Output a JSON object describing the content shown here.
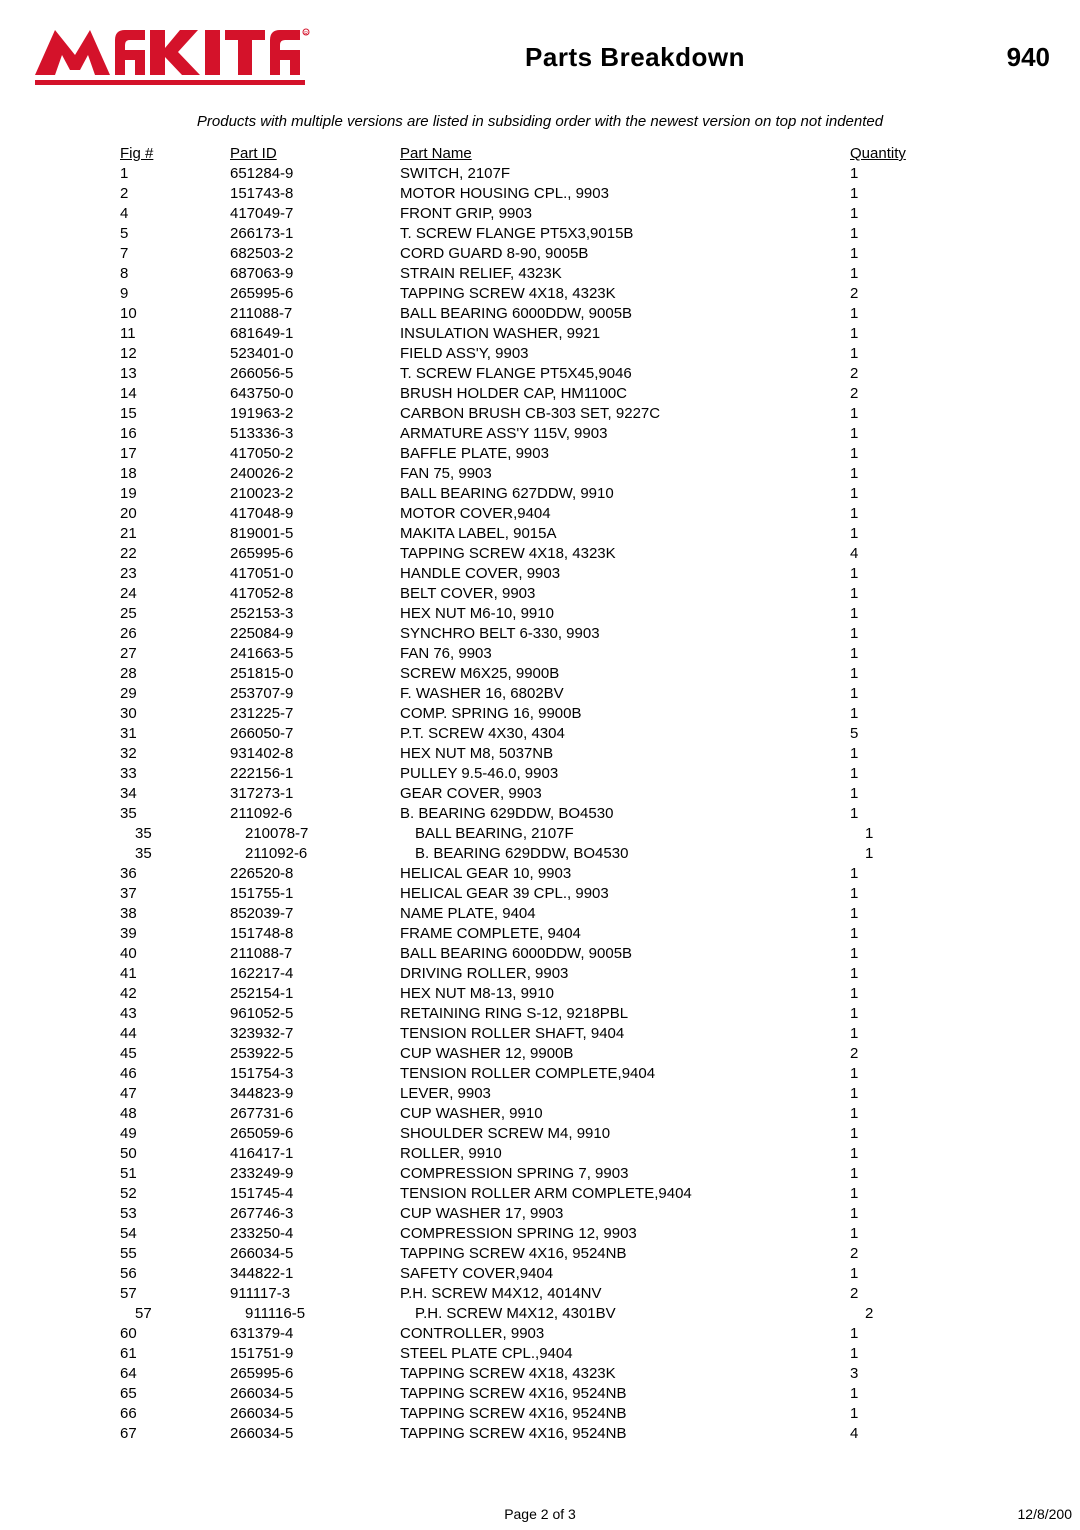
{
  "header": {
    "brand": "makita",
    "title": "Parts Breakdown",
    "model": "940"
  },
  "subtitle": "Products with multiple versions are listed in subsiding order with the newest version on top not indented",
  "columns": {
    "fig": "Fig #",
    "partId": "Part ID",
    "partName": "Part Name",
    "quantity": "Quantity"
  },
  "rows": [
    {
      "fig": "1",
      "id": "651284-9",
      "name": "SWITCH, 2107F",
      "qty": "1",
      "indent": false
    },
    {
      "fig": "2",
      "id": "151743-8",
      "name": "MOTOR HOUSING CPL., 9903",
      "qty": "1",
      "indent": false
    },
    {
      "fig": "4",
      "id": "417049-7",
      "name": "FRONT GRIP, 9903",
      "qty": "1",
      "indent": false
    },
    {
      "fig": "5",
      "id": "266173-1",
      "name": "T. SCREW FLANGE PT5X3,9015B",
      "qty": "1",
      "indent": false
    },
    {
      "fig": "7",
      "id": "682503-2",
      "name": "CORD GUARD 8-90, 9005B",
      "qty": "1",
      "indent": false
    },
    {
      "fig": "8",
      "id": "687063-9",
      "name": "STRAIN RELIEF, 4323K",
      "qty": "1",
      "indent": false
    },
    {
      "fig": "9",
      "id": "265995-6",
      "name": "TAPPING SCREW 4X18, 4323K",
      "qty": "2",
      "indent": false
    },
    {
      "fig": "10",
      "id": "211088-7",
      "name": "BALL BEARING 6000DDW, 9005B",
      "qty": "1",
      "indent": false
    },
    {
      "fig": "11",
      "id": "681649-1",
      "name": "INSULATION WASHER, 9921",
      "qty": "1",
      "indent": false
    },
    {
      "fig": "12",
      "id": "523401-0",
      "name": "FIELD ASS'Y, 9903",
      "qty": "1",
      "indent": false
    },
    {
      "fig": "13",
      "id": "266056-5",
      "name": "T. SCREW FLANGE PT5X45,9046",
      "qty": "2",
      "indent": false
    },
    {
      "fig": "14",
      "id": "643750-0",
      "name": "BRUSH HOLDER CAP, HM1100C",
      "qty": "2",
      "indent": false
    },
    {
      "fig": "15",
      "id": "191963-2",
      "name": "CARBON BRUSH CB-303 SET, 9227C",
      "qty": "1",
      "indent": false
    },
    {
      "fig": "16",
      "id": "513336-3",
      "name": "ARMATURE ASS'Y 115V, 9903",
      "qty": "1",
      "indent": false
    },
    {
      "fig": "17",
      "id": "417050-2",
      "name": "BAFFLE PLATE, 9903",
      "qty": "1",
      "indent": false
    },
    {
      "fig": "18",
      "id": "240026-2",
      "name": "FAN 75, 9903",
      "qty": "1",
      "indent": false
    },
    {
      "fig": "19",
      "id": "210023-2",
      "name": "BALL BEARING 627DDW, 9910",
      "qty": "1",
      "indent": false
    },
    {
      "fig": "20",
      "id": "417048-9",
      "name": "MOTOR COVER,9404",
      "qty": "1",
      "indent": false
    },
    {
      "fig": "21",
      "id": "819001-5",
      "name": "MAKITA LABEL, 9015A",
      "qty": "1",
      "indent": false
    },
    {
      "fig": "22",
      "id": "265995-6",
      "name": "TAPPING SCREW 4X18, 4323K",
      "qty": "4",
      "indent": false
    },
    {
      "fig": "23",
      "id": "417051-0",
      "name": "HANDLE COVER, 9903",
      "qty": "1",
      "indent": false
    },
    {
      "fig": "24",
      "id": "417052-8",
      "name": "BELT COVER, 9903",
      "qty": "1",
      "indent": false
    },
    {
      "fig": "25",
      "id": "252153-3",
      "name": "HEX NUT M6-10, 9910",
      "qty": "1",
      "indent": false
    },
    {
      "fig": "26",
      "id": "225084-9",
      "name": "SYNCHRO BELT 6-330, 9903",
      "qty": "1",
      "indent": false
    },
    {
      "fig": "27",
      "id": "241663-5",
      "name": "FAN 76, 9903",
      "qty": "1",
      "indent": false
    },
    {
      "fig": "28",
      "id": "251815-0",
      "name": "SCREW M6X25, 9900B",
      "qty": "1",
      "indent": false
    },
    {
      "fig": "29",
      "id": "253707-9",
      "name": "F. WASHER 16, 6802BV",
      "qty": "1",
      "indent": false
    },
    {
      "fig": "30",
      "id": "231225-7",
      "name": "COMP. SPRING 16, 9900B",
      "qty": "1",
      "indent": false
    },
    {
      "fig": "31",
      "id": "266050-7",
      "name": "P.T. SCREW 4X30, 4304",
      "qty": "5",
      "indent": false
    },
    {
      "fig": "32",
      "id": "931402-8",
      "name": "HEX NUT M8, 5037NB",
      "qty": "1",
      "indent": false
    },
    {
      "fig": "33",
      "id": "222156-1",
      "name": "PULLEY 9.5-46.0, 9903",
      "qty": "1",
      "indent": false
    },
    {
      "fig": "34",
      "id": "317273-1",
      "name": "GEAR COVER, 9903",
      "qty": "1",
      "indent": false
    },
    {
      "fig": "35",
      "id": "211092-6",
      "name": "B. BEARING 629DDW, BO4530",
      "qty": "1",
      "indent": false
    },
    {
      "fig": "35",
      "id": "210078-7",
      "name": "BALL BEARING, 2107F",
      "qty": "1",
      "indent": true
    },
    {
      "fig": "35",
      "id": "211092-6",
      "name": "B. BEARING 629DDW, BO4530",
      "qty": "1",
      "indent": true
    },
    {
      "fig": "36",
      "id": "226520-8",
      "name": "HELICAL GEAR 10, 9903",
      "qty": "1",
      "indent": false
    },
    {
      "fig": "37",
      "id": "151755-1",
      "name": "HELICAL GEAR 39 CPL., 9903",
      "qty": "1",
      "indent": false
    },
    {
      "fig": "38",
      "id": "852039-7",
      "name": "NAME PLATE, 9404",
      "qty": "1",
      "indent": false
    },
    {
      "fig": "39",
      "id": "151748-8",
      "name": "FRAME COMPLETE, 9404",
      "qty": "1",
      "indent": false
    },
    {
      "fig": "40",
      "id": "211088-7",
      "name": "BALL BEARING 6000DDW, 9005B",
      "qty": "1",
      "indent": false
    },
    {
      "fig": "41",
      "id": "162217-4",
      "name": "DRIVING ROLLER, 9903",
      "qty": "1",
      "indent": false
    },
    {
      "fig": "42",
      "id": "252154-1",
      "name": "HEX NUT M8-13, 9910",
      "qty": "1",
      "indent": false
    },
    {
      "fig": "43",
      "id": "961052-5",
      "name": "RETAINING RING S-12, 9218PBL",
      "qty": "1",
      "indent": false
    },
    {
      "fig": "44",
      "id": "323932-7",
      "name": "TENSION ROLLER SHAFT, 9404",
      "qty": "1",
      "indent": false
    },
    {
      "fig": "45",
      "id": "253922-5",
      "name": "CUP WASHER 12, 9900B",
      "qty": "2",
      "indent": false
    },
    {
      "fig": "46",
      "id": "151754-3",
      "name": "TENSION ROLLER COMPLETE,9404",
      "qty": "1",
      "indent": false
    },
    {
      "fig": "47",
      "id": "344823-9",
      "name": "LEVER, 9903",
      "qty": "1",
      "indent": false
    },
    {
      "fig": "48",
      "id": "267731-6",
      "name": "CUP WASHER, 9910",
      "qty": "1",
      "indent": false
    },
    {
      "fig": "49",
      "id": "265059-6",
      "name": "SHOULDER SCREW M4, 9910",
      "qty": "1",
      "indent": false
    },
    {
      "fig": "50",
      "id": "416417-1",
      "name": "ROLLER, 9910",
      "qty": "1",
      "indent": false
    },
    {
      "fig": "51",
      "id": "233249-9",
      "name": "COMPRESSION SPRING 7, 9903",
      "qty": "1",
      "indent": false
    },
    {
      "fig": "52",
      "id": "151745-4",
      "name": "TENSION ROLLER ARM COMPLETE,9404",
      "qty": "1",
      "indent": false
    },
    {
      "fig": "53",
      "id": "267746-3",
      "name": "CUP WASHER 17, 9903",
      "qty": "1",
      "indent": false
    },
    {
      "fig": "54",
      "id": "233250-4",
      "name": "COMPRESSION SPRING 12, 9903",
      "qty": "1",
      "indent": false
    },
    {
      "fig": "55",
      "id": "266034-5",
      "name": "TAPPING SCREW 4X16, 9524NB",
      "qty": "2",
      "indent": false
    },
    {
      "fig": "56",
      "id": "344822-1",
      "name": "SAFETY COVER,9404",
      "qty": "1",
      "indent": false
    },
    {
      "fig": "57",
      "id": "911117-3",
      "name": "P.H. SCREW M4X12, 4014NV",
      "qty": "2",
      "indent": false
    },
    {
      "fig": "57",
      "id": "911116-5",
      "name": "P.H. SCREW M4X12, 4301BV",
      "qty": "2",
      "indent": true
    },
    {
      "fig": "60",
      "id": "631379-4",
      "name": "CONTROLLER, 9903",
      "qty": "1",
      "indent": false
    },
    {
      "fig": "61",
      "id": "151751-9",
      "name": "STEEL PLATE CPL.,9404",
      "qty": "1",
      "indent": false
    },
    {
      "fig": "64",
      "id": "265995-6",
      "name": "TAPPING SCREW 4X18, 4323K",
      "qty": "3",
      "indent": false
    },
    {
      "fig": "65",
      "id": "266034-5",
      "name": "TAPPING SCREW 4X16, 9524NB",
      "qty": "1",
      "indent": false
    },
    {
      "fig": "66",
      "id": "266034-5",
      "name": "TAPPING SCREW 4X16, 9524NB",
      "qty": "1",
      "indent": false
    },
    {
      "fig": "67",
      "id": "266034-5",
      "name": "TAPPING SCREW 4X16, 9524NB",
      "qty": "4",
      "indent": false
    }
  ],
  "footer": {
    "page": "Page 2 of 3",
    "date": "12/8/200"
  },
  "style": {
    "logo_fill": "#d4122a",
    "body_font_size": 15,
    "line_height": 20,
    "title_font_size": 26,
    "background": "#ffffff",
    "text_color": "#000000"
  }
}
